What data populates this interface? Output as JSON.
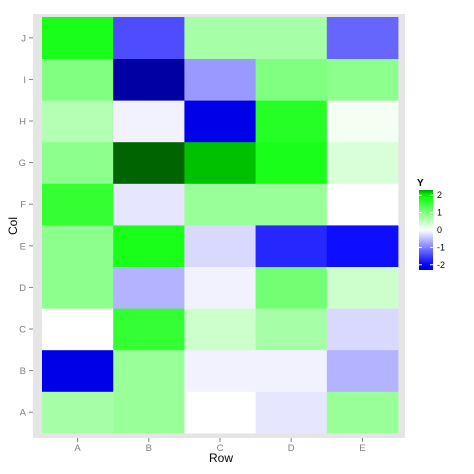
{
  "chart_data": {
    "type": "heatmap",
    "xlabel": "Row",
    "ylabel": "Col",
    "x_categories": [
      "A",
      "B",
      "C",
      "D",
      "E"
    ],
    "y_categories": [
      "A",
      "B",
      "C",
      "D",
      "E",
      "F",
      "G",
      "H",
      "I",
      "J"
    ],
    "values": {
      "A": [
        0.7,
        -2.1,
        0.0,
        0.9,
        0.9,
        1.6,
        0.9,
        0.6,
        1.0,
        1.8
      ],
      "B": [
        0.8,
        0.8,
        1.6,
        -0.6,
        1.8,
        -0.2,
        2.5,
        -0.1,
        -2.4,
        -1.4
      ],
      "C": [
        0.0,
        -0.1,
        0.4,
        -0.1,
        -0.3,
        0.8,
        2.2,
        -2.1,
        -0.8,
        0.7
      ],
      "D": [
        -0.2,
        -0.1,
        0.7,
        1.1,
        -1.7,
        0.8,
        1.8,
        1.7,
        1.0,
        0.7
      ],
      "E": [
        0.8,
        -0.6,
        -0.3,
        0.4,
        -1.9,
        0.0,
        0.3,
        0.1,
        0.9,
        -1.2
      ]
    },
    "color_scale": {
      "low": "#0000ff",
      "mid": "#ffffff",
      "high": "#00ff00",
      "range": [
        -2.5,
        2.5
      ]
    },
    "legend": {
      "title": "Y",
      "ticks": [
        2,
        1,
        0,
        -1,
        -2
      ],
      "placement": "right"
    },
    "panel_background": "#e5e5e5",
    "grid": false
  }
}
